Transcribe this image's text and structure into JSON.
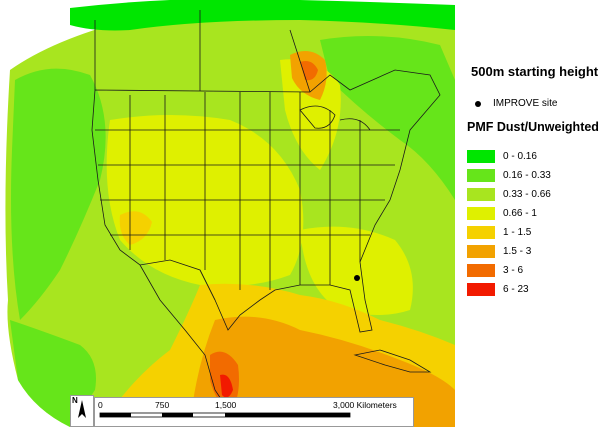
{
  "map_title": "500m starting height",
  "site_label": "IMPROVE site",
  "legend_title": "PMF Dust/Unweighted",
  "legend": [
    {
      "label": "0 - 0.16",
      "color": "#00e600"
    },
    {
      "label": "0.16 - 0.33",
      "color": "#66e51a"
    },
    {
      "label": "0.33 - 0.66",
      "color": "#a8e51f"
    },
    {
      "label": "0.66 - 1",
      "color": "#dff000"
    },
    {
      "label": "1 - 1.5",
      "color": "#f5d100"
    },
    {
      "label": "1.5 - 3",
      "color": "#f2a200"
    },
    {
      "label": "3 - 6",
      "color": "#f26b00"
    },
    {
      "label": "6 - 23",
      "color": "#f21a00"
    }
  ],
  "scale": {
    "zero": "0",
    "a": "750",
    "b": "1,500",
    "c": "3,000 Kilometers"
  },
  "north_label": "N"
}
